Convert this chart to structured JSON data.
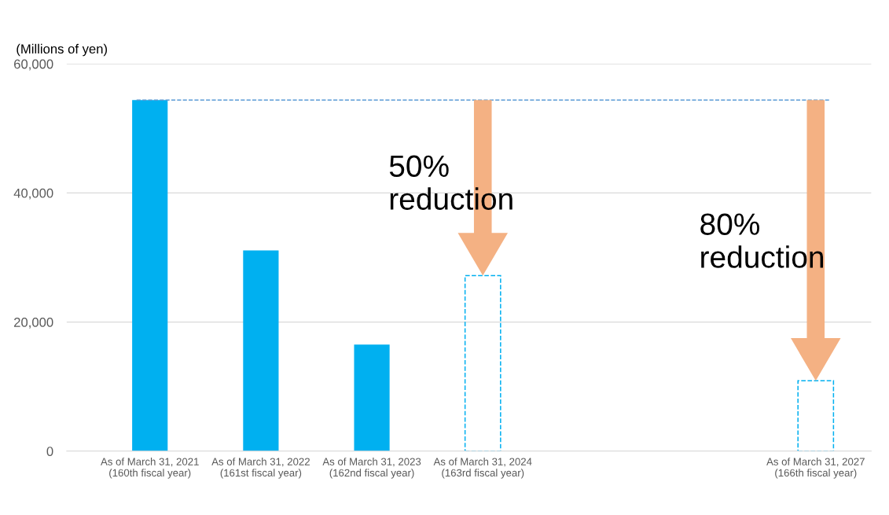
{
  "chart_data": {
    "type": "bar",
    "ylabel": "(Millions of yen)",
    "categories": [
      "As of March 31, 2021\n(160th fiscal year)",
      "As of March 31, 2022\n(161st fiscal year)",
      "As of March 31, 2023\n(162nd fiscal year)",
      "As of March 31, 2024\n(163rd fiscal year)",
      null,
      null,
      "As of March 31, 2027\n(166th fiscal year)"
    ],
    "series": [
      {
        "color": "#00b0f0",
        "values": [
          54400,
          31100,
          16500,
          null,
          null,
          null,
          null
        ]
      },
      {
        "color": "#00b0f0",
        "line_style": "dashed",
        "values": [
          null,
          null,
          null,
          27200,
          null,
          null,
          10900
        ]
      }
    ],
    "ylim": [
      0,
      60000
    ],
    "yticks": [
      {
        "value": 0,
        "label": "0"
      },
      {
        "value": 20000,
        "label": "20,000"
      },
      {
        "value": 40000,
        "label": "40,000"
      },
      {
        "value": 60000,
        "label": "60,000"
      }
    ],
    "grid": "y",
    "ref_lines": [
      {
        "axis": "y",
        "value": 54400,
        "color": "#5b9bd5",
        "line_style": "dashed"
      }
    ],
    "annotations": [
      "50%\nreduction",
      "80%\nreduction"
    ]
  }
}
